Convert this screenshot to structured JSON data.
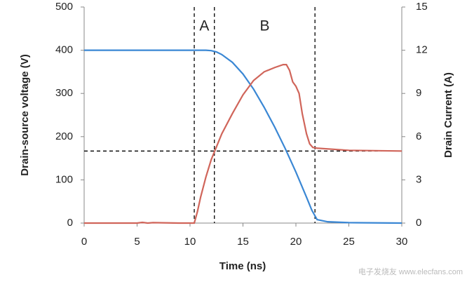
{
  "chart_data": {
    "type": "line",
    "xlabel": "Time (ns)",
    "ylabel": "Drain-source voltage (V)",
    "y2label": "Drain Current (A)",
    "xlim": [
      0,
      30
    ],
    "xticks": [
      0,
      5,
      10,
      15,
      20,
      25,
      30
    ],
    "ylim": [
      0,
      500
    ],
    "yticks": [
      0,
      100,
      200,
      300,
      400,
      500
    ],
    "y2lim": [
      0,
      15
    ],
    "y2ticks": [
      0,
      3,
      6,
      9,
      12,
      15
    ],
    "series": [
      {
        "name": "Drain-source voltage",
        "color": "#3a87d4",
        "axis": "y",
        "x": [
          0,
          5,
          10,
          11.5,
          12,
          12.5,
          13,
          14,
          15,
          16,
          17,
          18,
          19,
          20,
          21,
          21.5,
          22,
          23,
          25,
          30
        ],
        "values": [
          400,
          400,
          400,
          400,
          399,
          396,
          390,
          372,
          345,
          310,
          268,
          222,
          172,
          118,
          60,
          30,
          8,
          3,
          1,
          0
        ]
      },
      {
        "name": "Drain current",
        "color": "#d0655a",
        "axis": "y2",
        "x": [
          0,
          5,
          5.5,
          6,
          6.5,
          9,
          10.2,
          10.4,
          10.7,
          11,
          11.5,
          12,
          12.5,
          13,
          14,
          15,
          16,
          17,
          18,
          18.8,
          19.1,
          19.4,
          19.7,
          20,
          20.3,
          20.6,
          21,
          21.3,
          21.6,
          22,
          25,
          30
        ],
        "values": [
          0,
          0,
          0.05,
          0,
          0.03,
          0,
          0,
          0,
          0.8,
          1.8,
          3.2,
          4.4,
          5.3,
          6.2,
          7.6,
          8.9,
          9.9,
          10.5,
          10.8,
          11,
          11,
          10.6,
          9.8,
          9.5,
          9.0,
          7.6,
          6.2,
          5.5,
          5.25,
          5.2,
          5.05,
          5.0
        ]
      }
    ],
    "vlines": [
      10.4,
      12.3,
      21.8
    ],
    "hline_y2": 5,
    "annotations": [
      "A",
      "B"
    ],
    "watermark": "电子发烧友 www.elecfans.com"
  }
}
